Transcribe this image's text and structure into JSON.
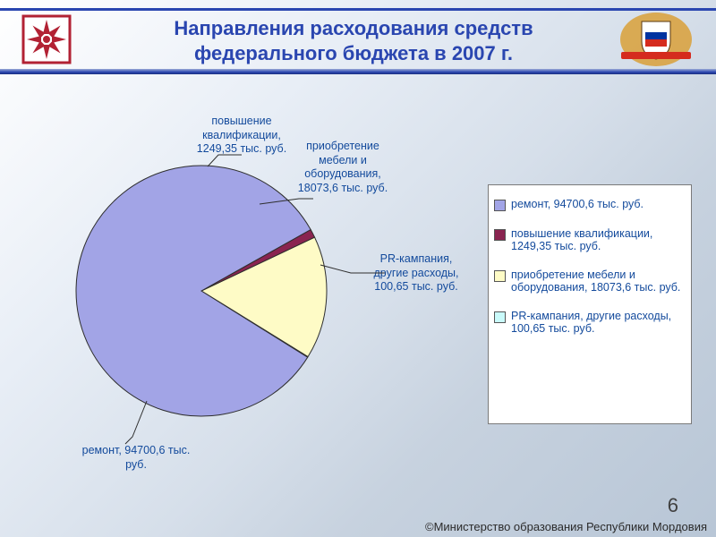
{
  "title": "Направления расходования средств федерального бюджета в 2007 г.",
  "page_number": "6",
  "copyright": "©Министерство образования Республики Мордовия",
  "chart": {
    "type": "pie",
    "background_color": "#ffffff",
    "start_angle_deg": 328,
    "slices": [
      {
        "label": "PR-кампания, другие расходы, 100,65 тыс. руб.",
        "value": 100.65,
        "color": "#c9fafa",
        "border": "#2e2e2e"
      },
      {
        "label": "приобретение мебели и оборудования, 18073,6 тыс. руб.",
        "value": 18073.6,
        "color": "#fefbc6",
        "border": "#2e2e2e"
      },
      {
        "label": "повышение квалификации, 1249,35 тыс. руб.",
        "value": 1249.35,
        "color": "#8a2450",
        "border": "#2e2e2e"
      },
      {
        "label": "ремонт, 94700,6 тыс. руб.",
        "value": 94700.6,
        "color": "#a2a4e6",
        "border": "#2e2e2e"
      }
    ],
    "label_color": "#134a9c",
    "label_fontsize": 12.5,
    "leader_color": "#2e2e2e"
  },
  "legend": {
    "border_color": "#7a7a7a",
    "background_color": "#ffffff",
    "fontsize": 12.5,
    "text_color": "#134a9c",
    "items": [
      {
        "swatch": "#a2a4e6",
        "text": "ремонт, 94700,6 тыс. руб."
      },
      {
        "swatch": "#8a2450",
        "text": "повышение квалификации, 1249,35 тыс. руб."
      },
      {
        "swatch": "#fefbc6",
        "text": "приобретение мебели и оборудования, 18073,6 тыс. руб."
      },
      {
        "swatch": "#c9fafa",
        "text": "PR-кампания, другие расходы, 100,65 тыс. руб."
      }
    ]
  },
  "slice_labels": {
    "l_pr": "PR-кампания,\nдругие расходы,\n100,65 тыс. руб.",
    "l_meb": "приобретение\nмебели и\nоборудования,\n18073,6 тыс. руб.",
    "l_kval": "повышение\nквалификации,\n1249,35 тыс. руб.",
    "l_rem": "ремонт, 94700,6 тыс.\nруб."
  },
  "emblem_colors": {
    "mordovia_red": "#b22234",
    "mordovia_blue": "#2b4aa8",
    "shield_white": "#ffffff",
    "ru_white": "#ffffff",
    "ru_blue": "#0033a0",
    "ru_red": "#d52b1e",
    "gold": "#d9a038"
  }
}
